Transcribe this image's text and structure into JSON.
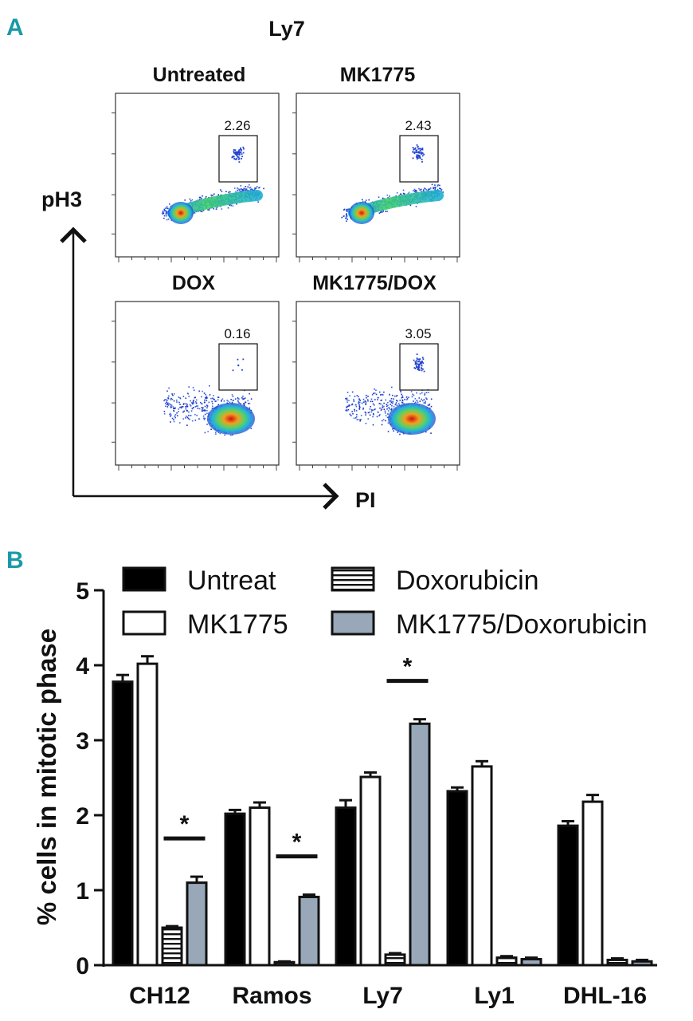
{
  "panel_a": {
    "letter": "A",
    "cell_line": "Ly7",
    "y_axis_label": "pH3",
    "x_axis_label": "PI",
    "plots": [
      {
        "title": "Untreated",
        "gate_value": "2.26",
        "condition": "untreated"
      },
      {
        "title": "MK1775",
        "gate_value": "2.43",
        "condition": "mk1775"
      },
      {
        "title": "DOX",
        "gate_value": "0.16",
        "condition": "dox"
      },
      {
        "title": "MK1775/DOX",
        "gate_value": "3.05",
        "condition": "combo"
      }
    ]
  },
  "panel_b": {
    "letter": "B"
  },
  "chart_data": {
    "type": "bar",
    "ylabel": "% cells in mitotic phase",
    "xlabel": "",
    "ylim": [
      0,
      5
    ],
    "yticks": [
      0,
      1,
      2,
      3,
      4,
      5
    ],
    "categories": [
      "CH12",
      "Ramos",
      "Ly7",
      "Ly1",
      "DHL-16"
    ],
    "legend_position": "top",
    "series": [
      {
        "name": "Untreat",
        "values": [
          3.78,
          2.02,
          2.1,
          2.32,
          1.86
        ],
        "errors": [
          0.09,
          0.05,
          0.1,
          0.05,
          0.06
        ],
        "fill": "#000000",
        "pattern": "solid"
      },
      {
        "name": "MK1775",
        "values": [
          4.02,
          2.1,
          2.51,
          2.65,
          2.18
        ],
        "errors": [
          0.1,
          0.07,
          0.06,
          0.07,
          0.09
        ],
        "fill": "#ffffff",
        "pattern": "open"
      },
      {
        "name": "Doxorubicin",
        "values": [
          0.5,
          0.04,
          0.14,
          0.1,
          0.07
        ],
        "errors": [
          0.02,
          0.01,
          0.02,
          0.02,
          0.02
        ],
        "fill": "#ffffff",
        "pattern": "horizontal-stripes"
      },
      {
        "name": "MK1775/Doxorubicin",
        "values": [
          1.1,
          0.91,
          3.22,
          0.08,
          0.05
        ],
        "errors": [
          0.08,
          0.03,
          0.06,
          0.02,
          0.02
        ],
        "fill": "#98a8b8",
        "pattern": "solid"
      }
    ],
    "annotations": [
      {
        "text": "*",
        "category": "CH12",
        "between": [
          "Doxorubicin",
          "MK1775/Doxorubicin"
        ]
      },
      {
        "text": "*",
        "category": "Ramos",
        "between": [
          "Doxorubicin",
          "MK1775/Doxorubicin"
        ]
      },
      {
        "text": "*",
        "category": "Ly7",
        "between": [
          "Doxorubicin",
          "MK1775/Doxorubicin"
        ]
      }
    ]
  }
}
